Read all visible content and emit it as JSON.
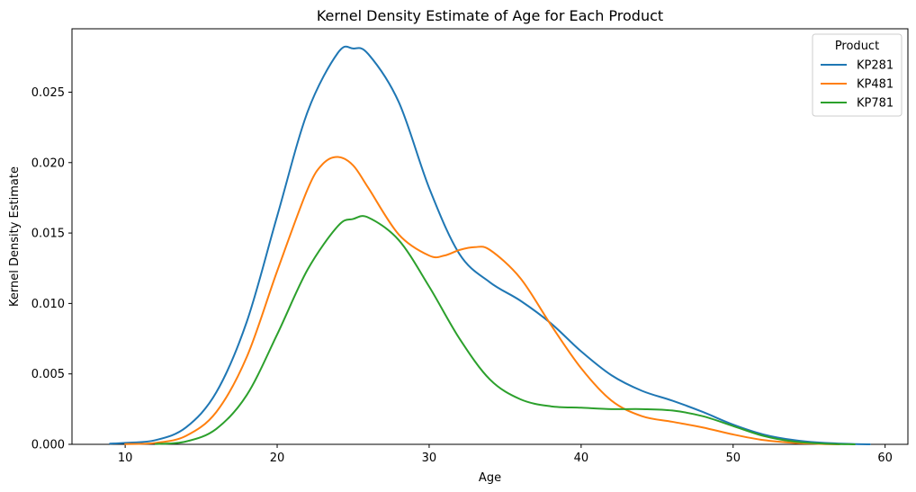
{
  "chart_data": {
    "type": "line",
    "title": "Kernel Density Estimate of Age for Each Product",
    "xlabel": "Age",
    "ylabel": "Kernel Density Estimate",
    "xlim": [
      6.5,
      61.5
    ],
    "ylim": [
      0,
      0.0295
    ],
    "xticks": [
      10,
      20,
      30,
      40,
      50,
      60
    ],
    "yticks": [
      0.0,
      0.005,
      0.01,
      0.015,
      0.02,
      0.025
    ],
    "ytick_labels": [
      "0.000",
      "0.005",
      "0.010",
      "0.015",
      "0.020",
      "0.025"
    ],
    "grid": false,
    "legend": {
      "title": "Product",
      "placement": "top-right"
    },
    "series": [
      {
        "name": "KP281",
        "color": "#1f77b4",
        "x": [
          9,
          10,
          12,
          14,
          16,
          18,
          20,
          22,
          24,
          25,
          26,
          28,
          30,
          32,
          34,
          36,
          38,
          40,
          42,
          44,
          46,
          48,
          50,
          52,
          54,
          56,
          58,
          59
        ],
        "y": [
          5e-05,
          0.0001,
          0.0003,
          0.0012,
          0.0037,
          0.0087,
          0.0162,
          0.0236,
          0.0278,
          0.0281,
          0.0277,
          0.0243,
          0.0182,
          0.0135,
          0.0115,
          0.0102,
          0.0086,
          0.0066,
          0.0049,
          0.0038,
          0.0031,
          0.0023,
          0.0014,
          0.0007,
          0.0003,
          0.0001,
          2e-05,
          0.0
        ]
      },
      {
        "name": "KP481",
        "color": "#ff7f0e",
        "x": [
          10,
          12,
          14,
          16,
          18,
          20,
          22,
          23,
          24,
          25,
          26,
          28,
          30,
          31,
          32,
          33,
          34,
          36,
          38,
          40,
          42,
          44,
          46,
          48,
          50,
          52,
          54,
          56,
          57
        ],
        "y": [
          2e-05,
          0.0001,
          0.0006,
          0.0023,
          0.0062,
          0.0123,
          0.0181,
          0.0199,
          0.0204,
          0.0198,
          0.0182,
          0.0149,
          0.0134,
          0.0134,
          0.0138,
          0.014,
          0.0138,
          0.0118,
          0.0085,
          0.0054,
          0.0031,
          0.002,
          0.0016,
          0.0012,
          0.0007,
          0.0003,
          0.0001,
          2e-05,
          0.0
        ]
      },
      {
        "name": "KP781",
        "color": "#2ca02c",
        "x": [
          12,
          14,
          16,
          18,
          20,
          22,
          24,
          25,
          26,
          28,
          30,
          32,
          34,
          36,
          38,
          40,
          42,
          44,
          46,
          48,
          50,
          52,
          54,
          56,
          58
        ],
        "y": [
          2e-05,
          0.0002,
          0.0011,
          0.0035,
          0.0078,
          0.0124,
          0.0155,
          0.016,
          0.0161,
          0.0145,
          0.0112,
          0.0075,
          0.0046,
          0.0032,
          0.0027,
          0.0026,
          0.0025,
          0.0025,
          0.0024,
          0.002,
          0.0013,
          0.0006,
          0.0002,
          5e-05,
          0.0
        ]
      }
    ]
  }
}
